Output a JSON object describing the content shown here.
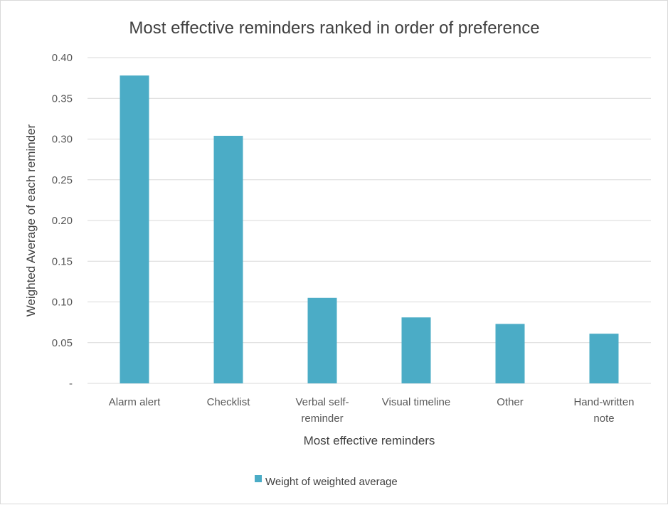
{
  "chart_data": {
    "type": "bar",
    "title": "Most effective reminders ranked in order of preference",
    "xlabel": "Most effective reminders",
    "ylabel": "Weighted Average of each reminder",
    "categories": [
      [
        "Alarm alert"
      ],
      [
        "Checklist"
      ],
      [
        "Verbal self-",
        "reminder"
      ],
      [
        "Visual timeline"
      ],
      [
        "Other"
      ],
      [
        "Hand-written",
        "note"
      ]
    ],
    "series": [
      {
        "name": "Weight of weighted average",
        "values": [
          0.378,
          0.304,
          0.105,
          0.081,
          0.073,
          0.061
        ]
      }
    ],
    "yticks": [
      "-",
      "0.05",
      "0.10",
      "0.15",
      "0.20",
      "0.25",
      "0.30",
      "0.35",
      "0.40"
    ],
    "ylim": [
      0,
      0.4
    ],
    "grid": true,
    "legend_position": "bottom",
    "colors": {
      "bar": "#4bacc6",
      "grid": "#d9d9d9"
    }
  }
}
